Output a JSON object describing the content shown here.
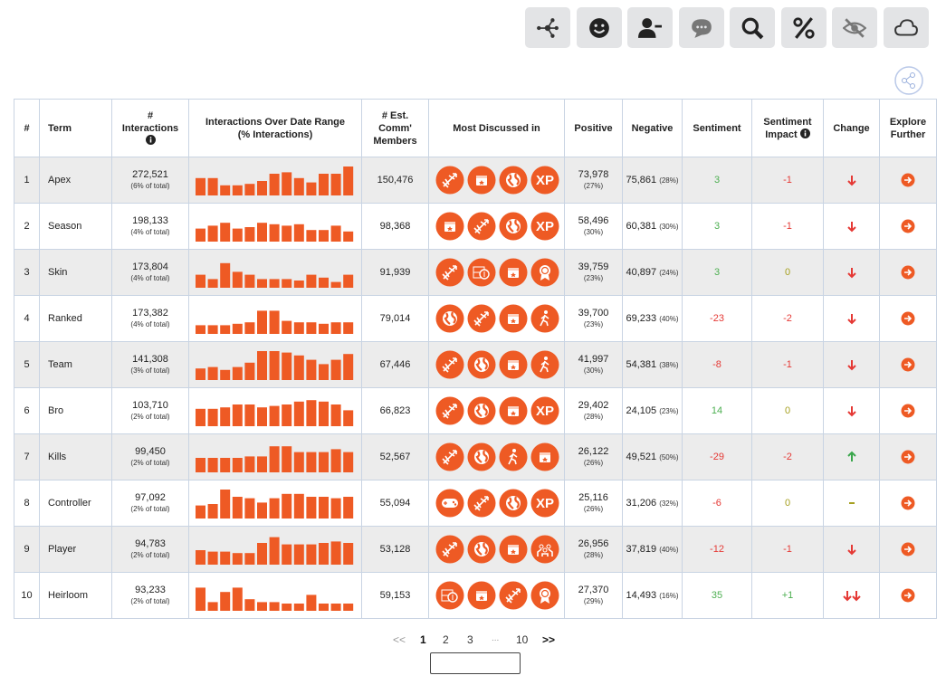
{
  "table": {
    "headers": [
      "#",
      "Term",
      "#\nInteractions",
      "Interactions Over Date Range\n(% Interactions)",
      "# Est.\nComm'\nMembers",
      "Most Discussed in",
      "Positive",
      "Negative",
      "Sentiment",
      "Sentiment\nImpact",
      "Change",
      "Explore\nFurther"
    ],
    "icon_label": "XP",
    "rows": [
      {
        "num": "1",
        "term": "Apex",
        "interactions": "272,521",
        "share": "(6% of total)",
        "trend": [
          60,
          60,
          35,
          35,
          40,
          50,
          75,
          80,
          60,
          45,
          75,
          75,
          100
        ],
        "members": "150,476",
        "positive": "73,978",
        "positive_pct": "(27%)",
        "negative": "75,861",
        "negative_pct": "(28%)",
        "sentiment": "3",
        "impact": "-1"
      },
      {
        "num": "2",
        "term": "Season",
        "interactions": "198,133",
        "share": "(4% of total)",
        "trend": [
          45,
          55,
          65,
          45,
          50,
          65,
          60,
          55,
          60,
          40,
          40,
          55,
          35
        ],
        "members": "98,368",
        "positive": "58,496",
        "positive_pct": "(30%)",
        "negative": "60,381",
        "negative_pct": "(30%)",
        "sentiment": "3",
        "impact": "-1"
      },
      {
        "num": "3",
        "term": "Skin",
        "interactions": "173,804",
        "share": "(4% of total)",
        "trend": [
          45,
          30,
          85,
          55,
          45,
          30,
          30,
          30,
          25,
          45,
          35,
          20,
          45
        ],
        "members": "91,939",
        "positive": "39,759",
        "positive_pct": "(23%)",
        "negative": "40,897",
        "negative_pct": "(24%)",
        "sentiment": "3",
        "impact": "0"
      },
      {
        "num": "4",
        "term": "Ranked",
        "interactions": "173,382",
        "share": "(4% of total)",
        "trend": [
          30,
          30,
          30,
          35,
          40,
          80,
          80,
          45,
          40,
          40,
          35,
          40,
          40
        ],
        "members": "79,014",
        "positive": "39,700",
        "positive_pct": "(23%)",
        "negative": "69,233",
        "negative_pct": "(40%)",
        "sentiment": "-23",
        "impact": "-2"
      },
      {
        "num": "5",
        "term": "Team",
        "interactions": "141,308",
        "share": "(3% of total)",
        "trend": [
          40,
          45,
          35,
          45,
          60,
          100,
          100,
          95,
          85,
          70,
          55,
          70,
          90
        ],
        "members": "67,446",
        "positive": "41,997",
        "positive_pct": "(30%)",
        "negative": "54,381",
        "negative_pct": "(38%)",
        "sentiment": "-8",
        "impact": "-1"
      },
      {
        "num": "6",
        "term": "Bro",
        "interactions": "103,710",
        "share": "(2% of total)",
        "trend": [
          60,
          60,
          65,
          75,
          75,
          65,
          70,
          75,
          85,
          90,
          85,
          75,
          55
        ],
        "members": "66,823",
        "positive": "29,402",
        "positive_pct": "(28%)",
        "negative": "24,105",
        "negative_pct": "(23%)",
        "sentiment": "14",
        "impact": "0"
      },
      {
        "num": "7",
        "term": "Kills",
        "interactions": "99,450",
        "share": "(2% of total)",
        "trend": [
          50,
          50,
          50,
          50,
          55,
          55,
          90,
          90,
          70,
          70,
          70,
          80,
          70
        ],
        "members": "52,567",
        "positive": "26,122",
        "positive_pct": "(26%)",
        "negative": "49,521",
        "negative_pct": "(50%)",
        "sentiment": "-29",
        "impact": "-2"
      },
      {
        "num": "8",
        "term": "Controller",
        "interactions": "97,092",
        "share": "(2% of total)",
        "trend": [
          45,
          50,
          100,
          75,
          70,
          55,
          70,
          85,
          85,
          75,
          75,
          70,
          75
        ],
        "members": "55,094",
        "positive": "25,116",
        "positive_pct": "(26%)",
        "negative": "31,206",
        "negative_pct": "(32%)",
        "sentiment": "-6",
        "impact": "0"
      },
      {
        "num": "9",
        "term": "Player",
        "interactions": "94,783",
        "share": "(2% of total)",
        "trend": [
          50,
          45,
          45,
          40,
          40,
          75,
          95,
          70,
          70,
          70,
          75,
          80,
          75
        ],
        "members": "53,128",
        "positive": "26,956",
        "positive_pct": "(28%)",
        "negative": "37,819",
        "negative_pct": "(40%)",
        "sentiment": "-12",
        "impact": "-1"
      },
      {
        "num": "10",
        "term": "Heirloom",
        "interactions": "93,233",
        "share": "(2% of total)",
        "trend": [
          80,
          30,
          65,
          80,
          40,
          30,
          30,
          25,
          25,
          55,
          25,
          25,
          25
        ],
        "members": "59,153",
        "positive": "27,370",
        "positive_pct": "(29%)",
        "negative": "14,493",
        "negative_pct": "(16%)",
        "sentiment": "35",
        "impact": "+1"
      }
    ]
  },
  "pagination": {
    "prev": "<<",
    "pages": [
      "1",
      "2",
      "3",
      "...",
      "10"
    ],
    "next": ">>"
  }
}
